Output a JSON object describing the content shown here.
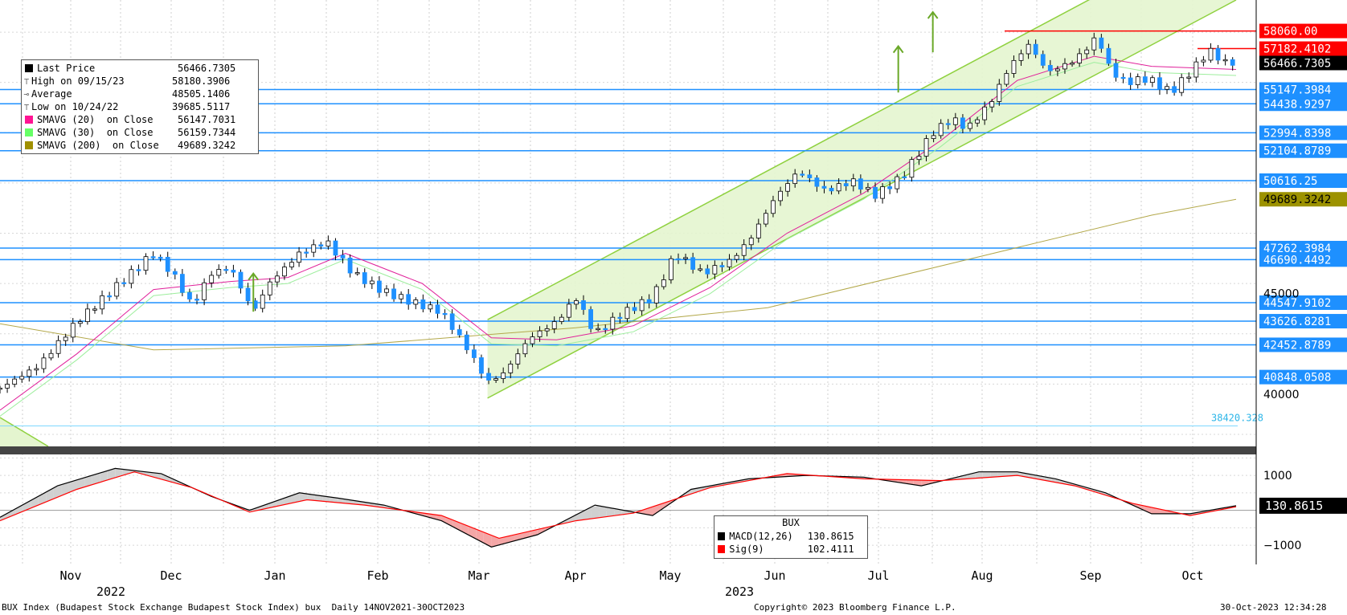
{
  "chart_data": {
    "type": "line",
    "style": "candlestick",
    "main": {
      "ylim": [
        37400,
        59600
      ],
      "x_months": [
        "Nov",
        "Dec",
        "Jan",
        "Feb",
        "Mar",
        "Apr",
        "May",
        "Jun",
        "Jul",
        "Aug",
        "Sep",
        "Oct"
      ],
      "x_years": [
        "2022",
        "2023"
      ],
      "y_ticks": [
        40000,
        45000
      ],
      "last_price_label": "56466.7305",
      "level_labels": [
        {
          "value": 58060.0,
          "label": "58060.00",
          "color": "#ff0000"
        },
        {
          "value": 57182.41,
          "label": "57182.4102",
          "color": "#ff0000"
        },
        {
          "value": 55147.4,
          "label": "55147.3984",
          "color": "#1e90ff"
        },
        {
          "value": 54438.93,
          "label": "54438.9297",
          "color": "#1e90ff"
        },
        {
          "value": 52994.84,
          "label": "52994.8398",
          "color": "#1e90ff"
        },
        {
          "value": 52104.88,
          "label": "52104.8789",
          "color": "#1e90ff"
        },
        {
          "value": 50616.25,
          "label": "50616.25",
          "color": "#1e90ff"
        },
        {
          "value": 49689.32,
          "label": "49689.3242",
          "color": "#9c9200"
        },
        {
          "value": 47262.4,
          "label": "47262.3984",
          "color": "#1e90ff"
        },
        {
          "value": 46690.45,
          "label": "46690.4492",
          "color": "#1e90ff"
        },
        {
          "value": 44547.91,
          "label": "44547.9102",
          "color": "#1e90ff"
        },
        {
          "value": 43626.83,
          "label": "43626.8281",
          "color": "#1e90ff"
        },
        {
          "value": 42452.88,
          "label": "42452.8789",
          "color": "#1e90ff"
        },
        {
          "value": 40848.05,
          "label": "40848.0508",
          "color": "#1e90ff"
        }
      ],
      "annotation": {
        "value": 38420.328,
        "label": "38420.328"
      },
      "price_path": [
        [
          0,
          40300
        ],
        [
          10,
          41400
        ],
        [
          20,
          43600
        ],
        [
          30,
          45300
        ],
        [
          40,
          47000
        ],
        [
          45,
          46000
        ],
        [
          50,
          44400
        ],
        [
          55,
          46000
        ],
        [
          60,
          46300
        ],
        [
          66,
          44100
        ],
        [
          70,
          45500
        ],
        [
          78,
          47000
        ],
        [
          85,
          47600
        ],
        [
          92,
          46000
        ],
        [
          100,
          45100
        ],
        [
          107,
          44600
        ],
        [
          115,
          44100
        ],
        [
          122,
          42200
        ],
        [
          127,
          40600
        ],
        [
          131,
          41000
        ],
        [
          138,
          42800
        ],
        [
          145,
          43600
        ],
        [
          150,
          44800
        ],
        [
          155,
          43000
        ],
        [
          162,
          44000
        ],
        [
          170,
          44800
        ],
        [
          176,
          47000
        ],
        [
          183,
          46000
        ],
        [
          190,
          46600
        ],
        [
          195,
          47600
        ],
        [
          202,
          49800
        ],
        [
          208,
          51100
        ],
        [
          215,
          50100
        ],
        [
          222,
          50600
        ],
        [
          228,
          49900
        ],
        [
          235,
          50800
        ],
        [
          243,
          53000
        ],
        [
          248,
          53700
        ],
        [
          252,
          53200
        ],
        [
          258,
          54500
        ],
        [
          263,
          56300
        ],
        [
          268,
          57400
        ],
        [
          273,
          56000
        ],
        [
          280,
          56600
        ],
        [
          286,
          57800
        ],
        [
          289,
          56200
        ],
        [
          293,
          55500
        ],
        [
          299,
          55700
        ],
        [
          305,
          55000
        ],
        [
          310,
          56000
        ],
        [
          315,
          57100
        ],
        [
          319,
          56500
        ],
        [
          322,
          56467
        ]
      ],
      "sma_path": [
        [
          0,
          39200
        ],
        [
          20,
          42000
        ],
        [
          40,
          45200
        ],
        [
          60,
          45600
        ],
        [
          75,
          45800
        ],
        [
          90,
          47000
        ],
        [
          110,
          45500
        ],
        [
          128,
          42800
        ],
        [
          145,
          42700
        ],
        [
          165,
          43400
        ],
        [
          185,
          45300
        ],
        [
          205,
          48000
        ],
        [
          225,
          50000
        ],
        [
          245,
          52600
        ],
        [
          265,
          55600
        ],
        [
          285,
          56800
        ],
        [
          300,
          56300
        ],
        [
          322,
          56148
        ]
      ],
      "sma200_path": [
        [
          0,
          43500
        ],
        [
          40,
          42200
        ],
        [
          90,
          42400
        ],
        [
          150,
          43300
        ],
        [
          200,
          44300
        ],
        [
          250,
          46600
        ],
        [
          300,
          48900
        ],
        [
          322,
          49690
        ]
      ],
      "channel": {
        "lower": [
          [
            127,
            39800
          ],
          [
            322,
            59600
          ]
        ],
        "upper": [
          [
            127,
            43700
          ],
          [
            322,
            63500
          ]
        ]
      }
    },
    "macd": {
      "ylim": [
        -1550,
        1600
      ],
      "y_ticks": [
        1000,
        -1000
      ],
      "macd_label": "130.8615",
      "macd_path": [
        [
          0,
          -200
        ],
        [
          15,
          700
        ],
        [
          30,
          1200
        ],
        [
          42,
          1050
        ],
        [
          55,
          400
        ],
        [
          65,
          0
        ],
        [
          78,
          500
        ],
        [
          88,
          350
        ],
        [
          100,
          150
        ],
        [
          115,
          -300
        ],
        [
          128,
          -1050
        ],
        [
          140,
          -700
        ],
        [
          155,
          150
        ],
        [
          170,
          -150
        ],
        [
          180,
          600
        ],
        [
          195,
          900
        ],
        [
          210,
          1000
        ],
        [
          225,
          950
        ],
        [
          240,
          700
        ],
        [
          255,
          1100
        ],
        [
          265,
          1100
        ],
        [
          275,
          900
        ],
        [
          288,
          500
        ],
        [
          300,
          -100
        ],
        [
          310,
          -100
        ],
        [
          322,
          130
        ]
      ],
      "signal_path": [
        [
          0,
          -300
        ],
        [
          20,
          600
        ],
        [
          35,
          1100
        ],
        [
          50,
          650
        ],
        [
          65,
          -50
        ],
        [
          80,
          300
        ],
        [
          95,
          150
        ],
        [
          115,
          -150
        ],
        [
          130,
          -800
        ],
        [
          150,
          -300
        ],
        [
          165,
          -80
        ],
        [
          185,
          650
        ],
        [
          205,
          1050
        ],
        [
          225,
          900
        ],
        [
          245,
          850
        ],
        [
          265,
          1000
        ],
        [
          280,
          700
        ],
        [
          295,
          200
        ],
        [
          310,
          -150
        ],
        [
          322,
          102
        ]
      ]
    }
  },
  "legend": {
    "items": [
      {
        "name": "Last Price",
        "value": "56466.7305",
        "icon": "black-square"
      },
      {
        "name": "High on 09/15/23",
        "value": "58180.3906",
        "icon": "high-marker"
      },
      {
        "name": "Average",
        "value": "48505.1406",
        "icon": "average-marker"
      },
      {
        "name": "Low on 10/24/22",
        "value": "39685.5117",
        "icon": "low-marker"
      },
      {
        "name": "SMAVG (20)  on Close",
        "value": "56147.7031",
        "color": "#ff1493"
      },
      {
        "name": "SMAVG (30)  on Close",
        "value": "56159.7344",
        "color": "#66ff66"
      },
      {
        "name": "SMAVG (200)  on Close",
        "value": "49689.3242",
        "color": "#a09000"
      }
    ]
  },
  "macd_legend": {
    "title": "BUX",
    "items": [
      {
        "name": "MACD(12,26)",
        "value": "130.8615",
        "color": "#000000"
      },
      {
        "name": "Sig(9)",
        "value": "102.4111",
        "color": "#ff0000"
      }
    ]
  },
  "footer": {
    "left": "BUX Index (Budapest Stock Exchange Budapest Stock Index) bux  Daily 14NOV2021-30OCT2023",
    "center": "Copyright© 2023 Bloomberg Finance L.P.",
    "right": "30-Oct-2023 12:34:28"
  }
}
